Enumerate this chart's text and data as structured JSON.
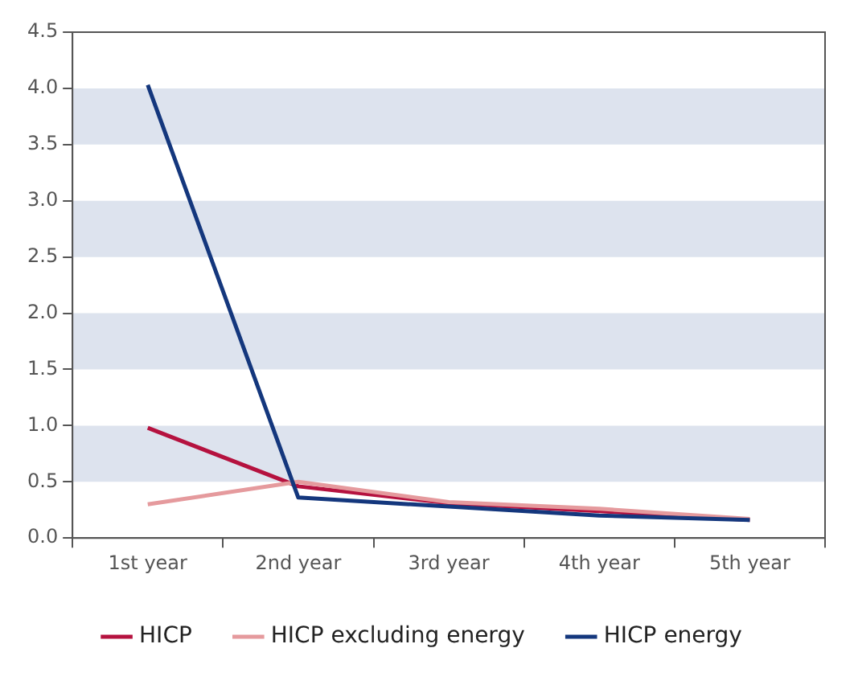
{
  "chart_data": {
    "type": "line",
    "categories": [
      "1st year",
      "2nd year",
      "3rd year",
      "4th year",
      "5th year"
    ],
    "series": [
      {
        "name": "HICP",
        "color": "#b5123f",
        "values": [
          0.98,
          0.46,
          0.31,
          0.24,
          0.16
        ]
      },
      {
        "name": "HICP excluding energy",
        "color": "#e59a9d",
        "values": [
          0.3,
          0.5,
          0.32,
          0.26,
          0.17
        ]
      },
      {
        "name": "HICP energy",
        "color": "#14377d",
        "values": [
          4.03,
          0.36,
          0.28,
          0.2,
          0.16
        ]
      }
    ],
    "ylim": [
      0,
      4.5
    ],
    "yticks": [
      {
        "value": 0,
        "label": "0.0"
      },
      {
        "value": 0.5,
        "label": "0.5"
      },
      {
        "value": 1,
        "label": "1.0"
      },
      {
        "value": 1.5,
        "label": "1.5"
      },
      {
        "value": 2,
        "label": "2.0"
      },
      {
        "value": 2.5,
        "label": "2.5"
      },
      {
        "value": 3,
        "label": "3.0"
      },
      {
        "value": 3.5,
        "label": "3.5"
      },
      {
        "value": 4,
        "label": "4.0"
      },
      {
        "value": 4.5,
        "label": "4.5"
      }
    ],
    "bands": [
      {
        "axis": "y",
        "from": 0.5,
        "to": 1,
        "color": "#dde3ee"
      },
      {
        "axis": "y",
        "from": 1.5,
        "to": 2,
        "color": "#dde3ee"
      },
      {
        "axis": "y",
        "from": 2.5,
        "to": 3,
        "color": "#dde3ee"
      },
      {
        "axis": "y",
        "from": 3.5,
        "to": 4,
        "color": "#dde3ee"
      }
    ],
    "grid": false,
    "legend": "bottom",
    "marker": "none",
    "line_style": "solid"
  }
}
